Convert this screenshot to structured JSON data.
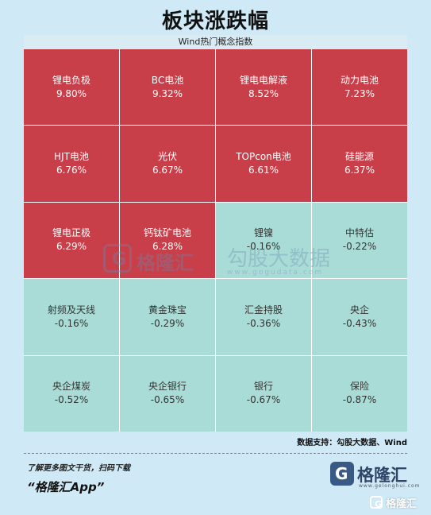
{
  "title": "板块涨跌幅",
  "subtitle": "Wind热门概念指数",
  "colors": {
    "up": "#c83f4a",
    "down": "#a9dcd6",
    "background": "#cfeaf6"
  },
  "chart_data": {
    "type": "table",
    "title": "板块涨跌幅",
    "subtitle": "Wind热门概念指数",
    "unit": "%",
    "cells": [
      {
        "name": "锂电负极",
        "value": 9.8,
        "label": "9.80%"
      },
      {
        "name": "BC电池",
        "value": 9.32,
        "label": "9.32%"
      },
      {
        "name": "锂电电解液",
        "value": 8.52,
        "label": "8.52%"
      },
      {
        "name": "动力电池",
        "value": 7.23,
        "label": "7.23%"
      },
      {
        "name": "HJT电池",
        "value": 6.76,
        "label": "6.76%"
      },
      {
        "name": "光伏",
        "value": 6.67,
        "label": "6.67%"
      },
      {
        "name": "TOPcon电池",
        "value": 6.61,
        "label": "6.61%"
      },
      {
        "name": "硅能源",
        "value": 6.37,
        "label": "6.37%"
      },
      {
        "name": "锂电正极",
        "value": 6.29,
        "label": "6.29%"
      },
      {
        "name": "钙钛矿电池",
        "value": 6.28,
        "label": "6.28%"
      },
      {
        "name": "锂镍",
        "value": -0.16,
        "label": "-0.16%"
      },
      {
        "name": "中特估",
        "value": -0.22,
        "label": "-0.22%"
      },
      {
        "name": "射频及天线",
        "value": -0.16,
        "label": "-0.16%"
      },
      {
        "name": "黄金珠宝",
        "value": -0.29,
        "label": "-0.29%"
      },
      {
        "name": "汇金持股",
        "value": -0.36,
        "label": "-0.36%"
      },
      {
        "name": "央企",
        "value": -0.43,
        "label": "-0.43%"
      },
      {
        "name": "央企煤炭",
        "value": -0.52,
        "label": "-0.52%"
      },
      {
        "name": "央企银行",
        "value": -0.65,
        "label": "-0.65%"
      },
      {
        "name": "银行",
        "value": -0.67,
        "label": "-0.67%"
      },
      {
        "name": "保险",
        "value": -0.87,
        "label": "-0.87%"
      }
    ]
  },
  "watermark": {
    "logo_letter": "G",
    "brand": "格隆汇",
    "text": "勾股大数据",
    "url": "www.gogudata.com"
  },
  "source": "数据支持：勾股大数据、Wind",
  "footer": {
    "cta": "了解更多图文干货，扫码下载",
    "app": "“格隆汇App”",
    "brand_letter": "G",
    "brand_name": "格隆汇",
    "brand_url": "www.gelonghui.com",
    "corner_name": "格隆汇"
  }
}
